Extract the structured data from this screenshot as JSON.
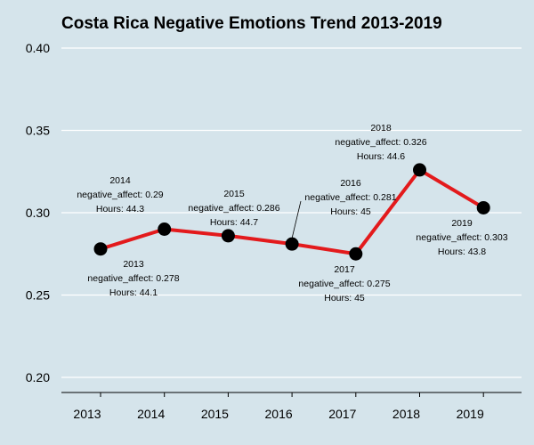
{
  "chart_data": {
    "type": "line",
    "title": "Costa Rica Negative Emotions Trend 2013-2019",
    "xlabel": "",
    "ylabel": "",
    "x": [
      "2013",
      "2014",
      "2015",
      "2016",
      "2017",
      "2018",
      "2019"
    ],
    "series": [
      {
        "values": [
          0.278,
          0.29,
          0.286,
          0.281,
          0.275,
          0.326,
          0.303
        ],
        "color": "#e31a1c"
      }
    ],
    "ylim": [
      0.2,
      0.4
    ],
    "yticks": [
      "0.20",
      "0.25",
      "0.30",
      "0.35",
      "0.40"
    ],
    "grid": "horizontal",
    "point_labels": [
      {
        "year": "2013",
        "metric": "negative_affect: 0.278",
        "hours": "Hours: 44.1"
      },
      {
        "year": "2014",
        "metric": "negative_affect: 0.29",
        "hours": "Hours: 44.3"
      },
      {
        "year": "2015",
        "metric": "negative_affect: 0.286",
        "hours": "Hours: 44.7"
      },
      {
        "year": "2016",
        "metric": "negative_affect: 0.281",
        "hours": "Hours: 45"
      },
      {
        "year": "2017",
        "metric": "negative_affect: 0.275",
        "hours": "Hours: 45"
      },
      {
        "year": "2018",
        "metric": "negative_affect: 0.326",
        "hours": "Hours: 44.6"
      },
      {
        "year": "2019",
        "metric": "negative_affect: 0.303",
        "hours": "Hours: 43.8"
      }
    ],
    "colors": {
      "background": "#d5e4eb",
      "grid": "#ffffff",
      "line": "#e31a1c",
      "point": "#000000"
    }
  }
}
